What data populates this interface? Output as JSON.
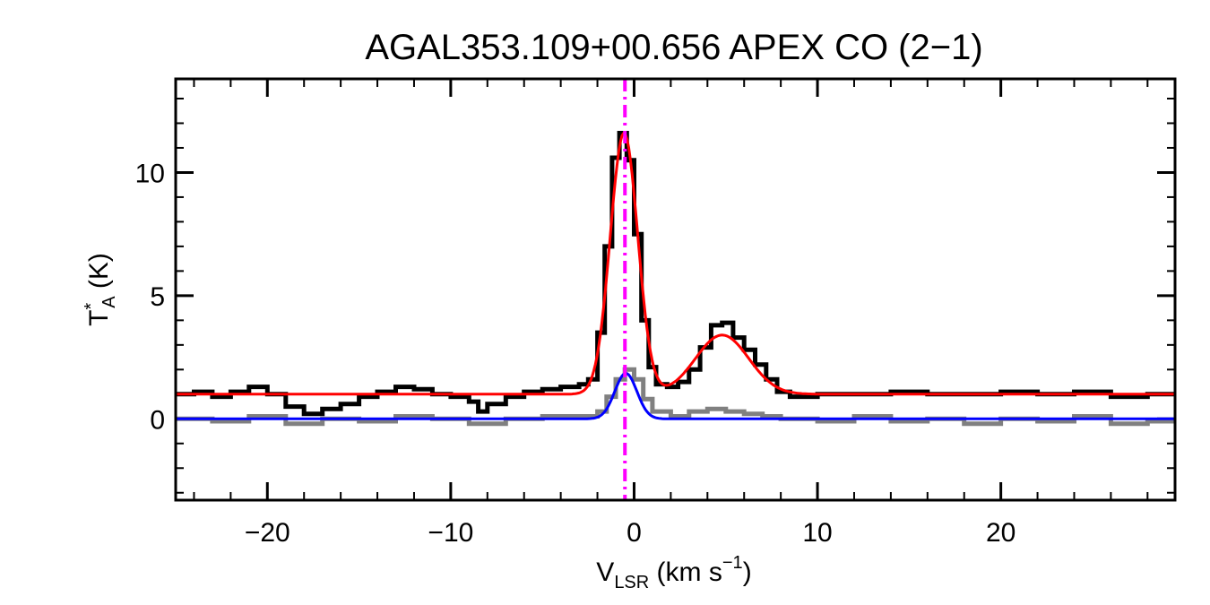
{
  "chart_data": {
    "type": "line",
    "title": "AGAL353.109+00.656  APEX CO (2−1)",
    "xlabel": {
      "main": "V",
      "sub": "LSR",
      "rest": " (km s",
      "sup": "−1",
      "end": ")"
    },
    "ylabel": {
      "main": "T",
      "sup": "*",
      "sub": "A",
      "rest": " (K)"
    },
    "xlim": [
      -25,
      29.5
    ],
    "ylim": [
      -3.3,
      13.8
    ],
    "xticks": [
      -20,
      -10,
      0,
      10,
      20
    ],
    "xtick_labels": [
      "−20",
      "−10",
      "0",
      "10",
      "20"
    ],
    "yticks": [
      0,
      5,
      10
    ],
    "ytick_labels": [
      "0",
      "5",
      "10"
    ],
    "x_minor_step": 2,
    "y_minor_step": 1,
    "vline": {
      "x": -0.5,
      "color": "#ff00ff",
      "style": "dash-dot"
    },
    "series": [
      {
        "style": "step",
        "color": "#000000",
        "points": [
          [
            -25,
            1.0
          ],
          [
            -24,
            1.1
          ],
          [
            -23,
            0.9
          ],
          [
            -22,
            1.1
          ],
          [
            -21,
            1.3
          ],
          [
            -20,
            1.0
          ],
          [
            -19,
            0.5
          ],
          [
            -18,
            0.2
          ],
          [
            -17,
            0.4
          ],
          [
            -16,
            0.6
          ],
          [
            -15,
            0.9
          ],
          [
            -14,
            1.1
          ],
          [
            -13,
            1.3
          ],
          [
            -12,
            1.2
          ],
          [
            -11,
            1.0
          ],
          [
            -10,
            0.9
          ],
          [
            -9,
            0.7
          ],
          [
            -8.5,
            0.3
          ],
          [
            -8,
            0.6
          ],
          [
            -7,
            0.9
          ],
          [
            -6,
            1.1
          ],
          [
            -5,
            1.2
          ],
          [
            -4,
            1.3
          ],
          [
            -3,
            1.4
          ],
          [
            -2.5,
            1.6
          ],
          [
            -2,
            3.5
          ],
          [
            -1.6,
            7.0
          ],
          [
            -1.2,
            10.6
          ],
          [
            -0.8,
            11.6
          ],
          [
            -0.4,
            10.5
          ],
          [
            0,
            7.5
          ],
          [
            0.4,
            4.0
          ],
          [
            0.8,
            2.1
          ],
          [
            1.2,
            1.4
          ],
          [
            1.8,
            1.3
          ],
          [
            2.4,
            1.5
          ],
          [
            3.0,
            2.0
          ],
          [
            3.6,
            2.9
          ],
          [
            4.2,
            3.8
          ],
          [
            4.8,
            3.9
          ],
          [
            5.4,
            3.3
          ],
          [
            6.0,
            2.8
          ],
          [
            6.6,
            2.2
          ],
          [
            7.2,
            1.6
          ],
          [
            7.8,
            1.1
          ],
          [
            8.5,
            0.9
          ],
          [
            10,
            1.0
          ],
          [
            12,
            1.0
          ],
          [
            14,
            1.1
          ],
          [
            16,
            1.0
          ],
          [
            18,
            1.0
          ],
          [
            20,
            1.1
          ],
          [
            22,
            1.0
          ],
          [
            24,
            1.1
          ],
          [
            26,
            0.9
          ],
          [
            28,
            1.0
          ],
          [
            29.5,
            1.0
          ]
        ]
      },
      {
        "style": "step",
        "color": "#808080",
        "points": [
          [
            -25,
            0.0
          ],
          [
            -23,
            -0.1
          ],
          [
            -21,
            0.1
          ],
          [
            -19,
            -0.2
          ],
          [
            -17,
            0.0
          ],
          [
            -15,
            -0.1
          ],
          [
            -13,
            0.1
          ],
          [
            -11,
            0.0
          ],
          [
            -9,
            -0.2
          ],
          [
            -7,
            0.0
          ],
          [
            -5,
            0.1
          ],
          [
            -3,
            0.1
          ],
          [
            -2,
            0.3
          ],
          [
            -1.5,
            0.9
          ],
          [
            -1,
            1.6
          ],
          [
            -0.5,
            2.0
          ],
          [
            0,
            1.6
          ],
          [
            0.5,
            0.8
          ],
          [
            1,
            0.3
          ],
          [
            2,
            0.1
          ],
          [
            3,
            0.3
          ],
          [
            4,
            0.4
          ],
          [
            5,
            0.3
          ],
          [
            6,
            0.2
          ],
          [
            7,
            0.1
          ],
          [
            8,
            0.0
          ],
          [
            10,
            -0.1
          ],
          [
            12,
            0.1
          ],
          [
            14,
            -0.1
          ],
          [
            16,
            0.0
          ],
          [
            18,
            -0.2
          ],
          [
            20,
            0.0
          ],
          [
            22,
            -0.1
          ],
          [
            24,
            0.1
          ],
          [
            26,
            -0.2
          ],
          [
            28,
            -0.1
          ],
          [
            29.5,
            0.0
          ]
        ]
      }
    ],
    "fits": [
      {
        "color": "#ff0000",
        "baseline": 1.0,
        "components": [
          {
            "amp": 10.6,
            "center": -0.55,
            "sigma": 0.75
          },
          {
            "amp": 2.4,
            "center": 4.8,
            "sigma": 1.45
          }
        ]
      },
      {
        "color": "#0000ff",
        "baseline": 0.0,
        "components": [
          {
            "amp": 1.85,
            "center": -0.45,
            "sigma": 0.6
          }
        ]
      }
    ]
  }
}
